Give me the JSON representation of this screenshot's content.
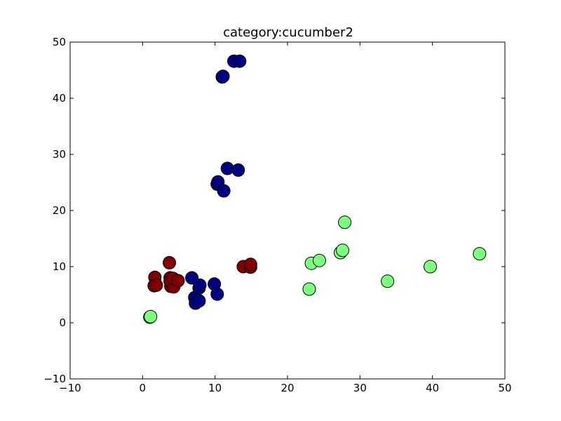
{
  "chart_data": {
    "type": "scatter",
    "title": "category:cucumber2",
    "xlabel": "",
    "ylabel": "",
    "xlim": [
      -10,
      50
    ],
    "ylim": [
      -10,
      50
    ],
    "xticks": [
      -10,
      0,
      10,
      20,
      30,
      40,
      50
    ],
    "yticks": [
      -10,
      0,
      10,
      20,
      30,
      40,
      50
    ],
    "grid": false,
    "legend": "none",
    "series": [
      {
        "color": "#7fff7f",
        "points": [
          [
            1.0,
            1.0
          ],
          [
            1.1,
            1.1
          ],
          [
            23.0,
            6.0
          ],
          [
            23.3,
            10.6
          ],
          [
            24.4,
            11.1
          ],
          [
            27.3,
            12.5
          ],
          [
            27.6,
            12.9
          ],
          [
            27.9,
            17.9
          ],
          [
            33.8,
            7.4
          ],
          [
            39.7,
            10.0
          ],
          [
            46.5,
            12.3
          ]
        ]
      },
      {
        "color": "#800000",
        "points": [
          [
            1.7,
            8.1
          ],
          [
            1.6,
            6.6
          ],
          [
            1.9,
            6.7
          ],
          [
            3.7,
            10.7
          ],
          [
            3.8,
            8.0
          ],
          [
            3.9,
            6.5
          ],
          [
            4.1,
            7.2
          ],
          [
            3.8,
            7.4
          ],
          [
            4.3,
            6.4
          ],
          [
            4.2,
            7.9
          ],
          [
            4.9,
            7.5
          ],
          [
            13.9,
            10.0
          ],
          [
            14.9,
            9.9
          ],
          [
            14.9,
            10.4
          ]
        ]
      },
      {
        "color": "#000080",
        "points": [
          [
            6.8,
            8.0
          ],
          [
            7.2,
            4.5
          ],
          [
            7.3,
            3.5
          ],
          [
            7.8,
            3.9
          ],
          [
            7.8,
            6.2
          ],
          [
            7.9,
            6.7
          ],
          [
            9.9,
            6.9
          ],
          [
            10.3,
            5.1
          ],
          [
            10.3,
            24.7
          ],
          [
            10.4,
            25.1
          ],
          [
            11.2,
            23.5
          ],
          [
            11.7,
            27.5
          ],
          [
            13.2,
            27.2
          ],
          [
            11.0,
            43.8
          ],
          [
            11.1,
            43.9
          ],
          [
            12.6,
            46.6
          ],
          [
            13.4,
            46.6
          ]
        ]
      }
    ]
  }
}
